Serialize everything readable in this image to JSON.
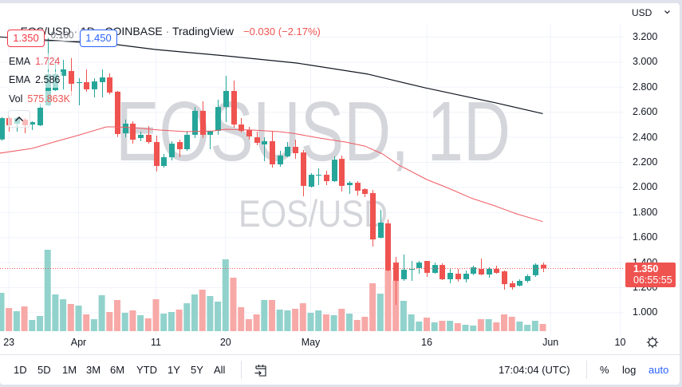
{
  "header": {
    "symbol": "EOS/USD",
    "separator": " · ",
    "interval": "1D",
    "exchange": "COINBASE",
    "source": "TradingView",
    "change": "−0.030 (−2.17%)"
  },
  "trade": {
    "sell_price": "1.350",
    "spread": "0.100",
    "buy_price": "1.450"
  },
  "legend": [
    {
      "label": "EMA",
      "value": "1.724",
      "color": "#e8505b"
    },
    {
      "label": "EMA",
      "value": "2.586",
      "color": "#131722"
    },
    {
      "label": "Vol",
      "value": "575.863K",
      "color": "#ef5350"
    }
  ],
  "watermark": {
    "main": "EOSUSD, 1D",
    "sub": "EOS/USD"
  },
  "price_axis": {
    "currency": "USD"
  },
  "last_price_tag": {
    "price": "1.350",
    "countdown": "06:55:55"
  },
  "toolbar": {
    "ranges": [
      "1D",
      "5D",
      "1M",
      "3M",
      "6M",
      "YTD",
      "1Y",
      "5Y",
      "All"
    ],
    "time": "17:04:04 (UTC)",
    "percent": "%",
    "log": "log",
    "auto": "auto"
  },
  "colors": {
    "up": "#26a69a",
    "down": "#ef5350",
    "up_volume": "#92d2cc",
    "down_volume": "#f7a9a7",
    "grid": "#f0f3fa",
    "watermark": "#d5d6db",
    "accent": "#2962ff"
  },
  "chart_data": {
    "type": "candlestick",
    "title": "EOS/USD · 1D · COINBASE",
    "xlabel": "",
    "ylabel": "USD",
    "grid": true,
    "ylim": [
      0.82,
      3.47
    ],
    "x_axis": {
      "ticks": [
        {
          "label": "23",
          "index": 1
        },
        {
          "label": "Apr",
          "index": 10
        },
        {
          "label": "11",
          "index": 20
        },
        {
          "label": "20",
          "index": 29
        },
        {
          "label": "May",
          "index": 40
        },
        {
          "label": "16",
          "index": 55
        },
        {
          "label": "Jun",
          "index": 71
        },
        {
          "label": "10",
          "index": 80
        }
      ]
    },
    "y_axis": {
      "ticks": [
        {
          "label": "3.200",
          "value": 3.2
        },
        {
          "label": "3.000",
          "value": 3.0
        },
        {
          "label": "2.800",
          "value": 2.8
        },
        {
          "label": "2.600",
          "value": 2.6
        },
        {
          "label": "2.400",
          "value": 2.4
        },
        {
          "label": "2.200",
          "value": 2.2
        },
        {
          "label": "2.000",
          "value": 2.0
        },
        {
          "label": "1.800",
          "value": 1.8
        },
        {
          "label": "1.600",
          "value": 1.6
        },
        {
          "label": "1.400",
          "value": 1.4
        },
        {
          "label": "1.200",
          "value": 1.2
        },
        {
          "label": "1.000",
          "value": 1.0
        }
      ]
    },
    "ohlc_fields": [
      "open",
      "high",
      "low",
      "close"
    ],
    "ohlc": [
      [
        2.38,
        2.56,
        2.37,
        2.55
      ],
      [
        2.55,
        2.565,
        2.442,
        2.493
      ],
      [
        2.506,
        2.56,
        2.442,
        2.55
      ],
      [
        2.538,
        2.55,
        2.429,
        2.493
      ],
      [
        2.499,
        2.525,
        2.455,
        2.518
      ],
      [
        2.493,
        2.665,
        2.487,
        2.633
      ],
      [
        2.652,
        3.19,
        2.646,
        2.901
      ],
      [
        2.773,
        3.015,
        2.767,
        2.901
      ],
      [
        2.888,
        3.015,
        2.78,
        2.939
      ],
      [
        2.926,
        3.03,
        2.729,
        2.824
      ],
      [
        2.83,
        2.869,
        2.652,
        2.837
      ],
      [
        2.837,
        2.939,
        2.761,
        2.78
      ],
      [
        2.78,
        2.869,
        2.716,
        2.843
      ],
      [
        2.837,
        2.939,
        2.716,
        2.875
      ],
      [
        2.875,
        2.907,
        2.741,
        2.754
      ],
      [
        2.761,
        2.767,
        2.4,
        2.423
      ],
      [
        2.429,
        2.538,
        2.397,
        2.506
      ],
      [
        2.506,
        2.525,
        2.346,
        2.378
      ],
      [
        2.391,
        2.442,
        2.366,
        2.417
      ],
      [
        2.417,
        2.487,
        2.346,
        2.359
      ],
      [
        2.359,
        2.41,
        2.124,
        2.168
      ],
      [
        2.168,
        2.264,
        2.155,
        2.238
      ],
      [
        2.238,
        2.366,
        2.213,
        2.346
      ],
      [
        2.359,
        2.378,
        2.238,
        2.302
      ],
      [
        2.302,
        2.448,
        2.289,
        2.417
      ],
      [
        2.417,
        2.639,
        2.391,
        2.608
      ],
      [
        2.608,
        2.684,
        2.391,
        2.417
      ],
      [
        2.417,
        2.448,
        2.302,
        2.448
      ],
      [
        2.448,
        2.697,
        2.417,
        2.639
      ],
      [
        2.639,
        2.888,
        2.518,
        2.767
      ],
      [
        2.767,
        2.85,
        2.474,
        2.499
      ],
      [
        2.499,
        2.55,
        2.436,
        2.448
      ],
      [
        2.455,
        2.48,
        2.378,
        2.404
      ],
      [
        2.397,
        2.442,
        2.334,
        2.353
      ],
      [
        2.34,
        2.397,
        2.206,
        2.366
      ],
      [
        2.366,
        2.442,
        2.155,
        2.181
      ],
      [
        2.181,
        2.289,
        2.162,
        2.251
      ],
      [
        2.245,
        2.359,
        2.238,
        2.321
      ],
      [
        2.321,
        2.378,
        2.225,
        2.27
      ],
      [
        2.276,
        2.296,
        1.926,
        2.009
      ],
      [
        2.003,
        2.111,
        1.996,
        2.098
      ],
      [
        2.092,
        2.149,
        2.015,
        2.098
      ],
      [
        2.098,
        2.13,
        2.015,
        2.047
      ],
      [
        2.047,
        2.245,
        2.041,
        2.219
      ],
      [
        2.225,
        2.251,
        1.964,
        2.009
      ],
      [
        2.015,
        2.047,
        1.945,
        2.034
      ],
      [
        2.034,
        2.047,
        1.932,
        1.971
      ],
      [
        1.983,
        1.99,
        1.92,
        1.945
      ],
      [
        1.952,
        1.977,
        1.525,
        1.582
      ],
      [
        1.595,
        1.818,
        1.59,
        1.716
      ],
      [
        1.71,
        1.741,
        1.327,
        1.334
      ],
      [
        1.397,
        1.442,
        1.06,
        1.251
      ],
      [
        1.264,
        1.461,
        1.251,
        1.34
      ],
      [
        1.34,
        1.41,
        1.251,
        1.347
      ],
      [
        1.353,
        1.41,
        1.308,
        1.397
      ],
      [
        1.41,
        1.41,
        1.283,
        1.315
      ],
      [
        1.315,
        1.397,
        1.308,
        1.378
      ],
      [
        1.378,
        1.391,
        1.257,
        1.264
      ],
      [
        1.264,
        1.347,
        1.232,
        1.315
      ],
      [
        1.308,
        1.347,
        1.245,
        1.264
      ],
      [
        1.264,
        1.334,
        1.238,
        1.308
      ],
      [
        1.308,
        1.372,
        1.296,
        1.359
      ],
      [
        1.347,
        1.429,
        1.296,
        1.302
      ],
      [
        1.302,
        1.359,
        1.276,
        1.347
      ],
      [
        1.347,
        1.372,
        1.308,
        1.315
      ],
      [
        1.327,
        1.334,
        1.181,
        1.225
      ],
      [
        1.232,
        1.251,
        1.181,
        1.2
      ],
      [
        1.213,
        1.264,
        1.206,
        1.251
      ],
      [
        1.251,
        1.302,
        1.238,
        1.289
      ],
      [
        1.296,
        1.391,
        1.283,
        1.38
      ],
      [
        1.38,
        1.397,
        1.321,
        1.35
      ]
    ],
    "volume_k": [
      3072,
      1856,
      1600,
      1984,
      896,
      1216,
      6528,
      2944,
      2560,
      2176,
      2048,
      1344,
      960,
      2880,
      1536,
      2496,
      1472,
      1664,
      1280,
      1024,
      2560,
      1408,
      1536,
      1728,
      2240,
      2944,
      3328,
      2816,
      2368,
      5760,
      4288,
      1920,
      960,
      1344,
      2496,
      2496,
      1728,
      1664,
      1792,
      2240,
      1472,
      1664,
      1344,
      1280,
      1792,
      1408,
      896,
      1152,
      3840,
      3008,
      4864,
      4032,
      2432,
      1344,
      768,
      1088,
      704,
      832,
      832,
      640,
      512,
      448,
      960,
      960,
      704,
      1344,
      1152,
      768,
      512,
      832,
      576
    ],
    "series": [
      {
        "id": "ema-slow-line",
        "name": "EMA",
        "last": 2.586,
        "color": "#131722",
        "width": 1.2,
        "points": [
          [
            -0.2,
            3.198
          ],
          [
            15,
            3.136
          ],
          [
            19.9,
            3.098
          ],
          [
            29,
            3.047
          ],
          [
            38.2,
            2.99
          ],
          [
            47.4,
            2.901
          ],
          [
            54.8,
            2.792
          ],
          [
            64,
            2.671
          ],
          [
            70,
            2.586
          ]
        ]
      },
      {
        "id": "ema-fast-line",
        "name": "EMA",
        "last": 1.724,
        "color": "#ef5a62",
        "width": 1,
        "points": [
          [
            -0.2,
            2.27
          ],
          [
            4,
            2.308
          ],
          [
            6.8,
            2.359
          ],
          [
            10.2,
            2.417
          ],
          [
            13.6,
            2.48
          ],
          [
            14.6,
            2.48
          ],
          [
            17.1,
            2.474
          ],
          [
            20.5,
            2.455
          ],
          [
            23.9,
            2.442
          ],
          [
            27.4,
            2.448
          ],
          [
            29,
            2.461
          ],
          [
            32.5,
            2.455
          ],
          [
            35.9,
            2.442
          ],
          [
            37.7,
            2.429
          ],
          [
            41.1,
            2.391
          ],
          [
            44.5,
            2.359
          ],
          [
            47,
            2.327
          ],
          [
            49.3,
            2.264
          ],
          [
            51.4,
            2.175
          ],
          [
            55,
            2.06
          ],
          [
            57.6,
            1.996
          ],
          [
            60.7,
            1.913
          ],
          [
            63.8,
            1.85
          ],
          [
            66.6,
            1.786
          ],
          [
            70,
            1.724
          ]
        ]
      }
    ],
    "last_price": 1.35,
    "last_volume": "575.863K",
    "legend_position": "top-left"
  }
}
